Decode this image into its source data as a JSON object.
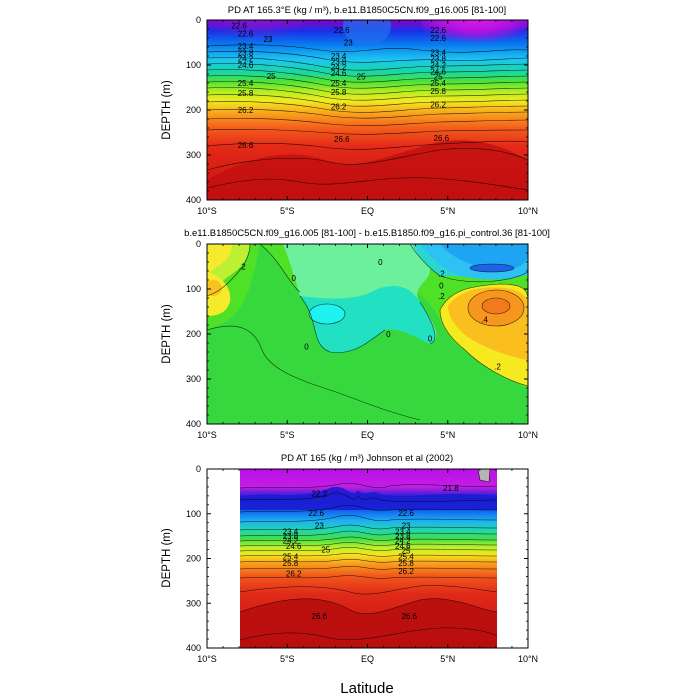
{
  "chart_data": [
    {
      "type": "contour",
      "title": "PD AT 165.3°E (kg / m³), b.e11.B1850C5CN.f09_g16.005 [81-100]",
      "ylabel": "DEPTH (m)",
      "xlim": [
        -10,
        10
      ],
      "ylim": [
        400,
        0
      ],
      "x_tick_labels": [
        "10°S",
        "5°S",
        "EQ",
        "5°N",
        "10°N"
      ],
      "y_ticks": [
        0,
        100,
        200,
        300,
        400
      ],
      "contour_labels": [
        {
          "text": "22.6",
          "lat": -8.0,
          "depth": 12
        },
        {
          "text": "22.6",
          "lat": -1.6,
          "depth": 22
        },
        {
          "text": "22.6",
          "lat": 4.4,
          "depth": 22
        },
        {
          "text": "22.6",
          "lat": -7.6,
          "depth": 30
        },
        {
          "text": "23",
          "lat": -6.2,
          "depth": 42
        },
        {
          "text": "23",
          "lat": -1.2,
          "depth": 50
        },
        {
          "text": "22.6",
          "lat": 4.4,
          "depth": 40
        },
        {
          "text": "23.4",
          "lat": -7.6,
          "depth": 58
        },
        {
          "text": "23.4",
          "lat": -1.8,
          "depth": 80
        },
        {
          "text": "23.4",
          "lat": 4.4,
          "depth": 72
        },
        {
          "text": "23.8",
          "lat": -7.6,
          "depth": 72
        },
        {
          "text": "23.8",
          "lat": -1.8,
          "depth": 92
        },
        {
          "text": "23.8",
          "lat": 4.4,
          "depth": 86
        },
        {
          "text": "24.2",
          "lat": -7.6,
          "depth": 86
        },
        {
          "text": "24.2",
          "lat": -1.8,
          "depth": 104
        },
        {
          "text": "24.2",
          "lat": 4.4,
          "depth": 100
        },
        {
          "text": "24.6",
          "lat": -7.6,
          "depth": 100
        },
        {
          "text": "24.6",
          "lat": -1.8,
          "depth": 118
        },
        {
          "text": "24.6",
          "lat": 4.4,
          "depth": 114
        },
        {
          "text": "25",
          "lat": -6.0,
          "depth": 124
        },
        {
          "text": "25",
          "lat": -0.4,
          "depth": 126
        },
        {
          "text": "25",
          "lat": 4.4,
          "depth": 126
        },
        {
          "text": "25.4",
          "lat": -7.6,
          "depth": 140
        },
        {
          "text": "25.4",
          "lat": -1.8,
          "depth": 140
        },
        {
          "text": "25.4",
          "lat": 4.4,
          "depth": 140
        },
        {
          "text": "25.8",
          "lat": -7.6,
          "depth": 162
        },
        {
          "text": "25.8",
          "lat": -1.8,
          "depth": 160
        },
        {
          "text": "25.8",
          "lat": 4.4,
          "depth": 158
        },
        {
          "text": "26.2",
          "lat": -7.6,
          "depth": 200
        },
        {
          "text": "26.2",
          "lat": -1.8,
          "depth": 192
        },
        {
          "text": "26.2",
          "lat": 4.4,
          "depth": 188
        },
        {
          "text": "26.6",
          "lat": -7.6,
          "depth": 278
        },
        {
          "text": "26.6",
          "lat": -1.6,
          "depth": 264
        },
        {
          "text": "26.6",
          "lat": 4.6,
          "depth": 262
        }
      ]
    },
    {
      "type": "contour",
      "title": "b.e11.B1850C5CN.f09_g16.005 [81-100] - b.e15.B1850.f09_g16.pi_control.36 [81-100]",
      "ylabel": "DEPTH (m)",
      "xlim": [
        -10,
        10
      ],
      "ylim": [
        400,
        0
      ],
      "x_tick_labels": [
        "10°S",
        "5°S",
        "EQ",
        "5°N",
        "10°N"
      ],
      "y_ticks": [
        0,
        100,
        200,
        300,
        400
      ],
      "contour_labels": [
        {
          "text": ".2",
          "lat": -7.8,
          "depth": 50
        },
        {
          "text": "0",
          "lat": -4.6,
          "depth": 75
        },
        {
          "text": "0",
          "lat": 0.8,
          "depth": 40
        },
        {
          "text": ".2",
          "lat": 4.6,
          "depth": 65
        },
        {
          "text": "0",
          "lat": 4.6,
          "depth": 92
        },
        {
          "text": ".2",
          "lat": 4.6,
          "depth": 115
        },
        {
          "text": ".4",
          "lat": 7.3,
          "depth": 168
        },
        {
          "text": "0",
          "lat": 1.3,
          "depth": 200
        },
        {
          "text": "0",
          "lat": 3.9,
          "depth": 210
        },
        {
          "text": "0",
          "lat": -3.8,
          "depth": 228
        },
        {
          "text": ".2",
          "lat": 8.1,
          "depth": 272
        }
      ]
    },
    {
      "type": "contour",
      "title": "PD AT 165 (kg / m³) Johnson et al (2002)",
      "ylabel": "DEPTH (m)",
      "xlabel": "Latitude",
      "xlim": [
        -10,
        10
      ],
      "ylim": [
        400,
        0
      ],
      "data_extent_lat": [
        -8,
        8
      ],
      "x_tick_labels": [
        "10°S",
        "5°S",
        "EQ",
        "5°N",
        "10°N"
      ],
      "y_ticks": [
        0,
        100,
        200,
        300,
        400
      ],
      "contour_labels": [
        {
          "text": "21.8",
          "lat": 5.2,
          "depth": 42
        },
        {
          "text": "22.2",
          "lat": -3.0,
          "depth": 55
        },
        {
          "text": "22.6",
          "lat": -3.2,
          "depth": 98
        },
        {
          "text": "22.6",
          "lat": 2.4,
          "depth": 98
        },
        {
          "text": "23",
          "lat": -3.0,
          "depth": 126
        },
        {
          "text": "23",
          "lat": 2.4,
          "depth": 126
        },
        {
          "text": "23.4",
          "lat": -4.8,
          "depth": 140
        },
        {
          "text": "23.4",
          "lat": 2.2,
          "depth": 140
        },
        {
          "text": "23.8",
          "lat": -4.8,
          "depth": 150
        },
        {
          "text": "23.8",
          "lat": 2.2,
          "depth": 150
        },
        {
          "text": "24.2",
          "lat": -4.8,
          "depth": 160
        },
        {
          "text": "24.2",
          "lat": 2.2,
          "depth": 160
        },
        {
          "text": "24.6",
          "lat": -4.6,
          "depth": 172
        },
        {
          "text": "24.6",
          "lat": 2.2,
          "depth": 172
        },
        {
          "text": "25",
          "lat": -2.6,
          "depth": 180
        },
        {
          "text": "25",
          "lat": 2.4,
          "depth": 182
        },
        {
          "text": "25.4",
          "lat": -4.8,
          "depth": 196
        },
        {
          "text": "25.4",
          "lat": 2.4,
          "depth": 196
        },
        {
          "text": "25.8",
          "lat": -4.8,
          "depth": 210
        },
        {
          "text": "25.8",
          "lat": 2.4,
          "depth": 210
        },
        {
          "text": "26.2",
          "lat": -4.6,
          "depth": 234
        },
        {
          "text": "26.2",
          "lat": 2.4,
          "depth": 228
        },
        {
          "text": "26.6",
          "lat": -3.0,
          "depth": 328
        },
        {
          "text": "26.6",
          "lat": 2.6,
          "depth": 328
        }
      ]
    }
  ]
}
